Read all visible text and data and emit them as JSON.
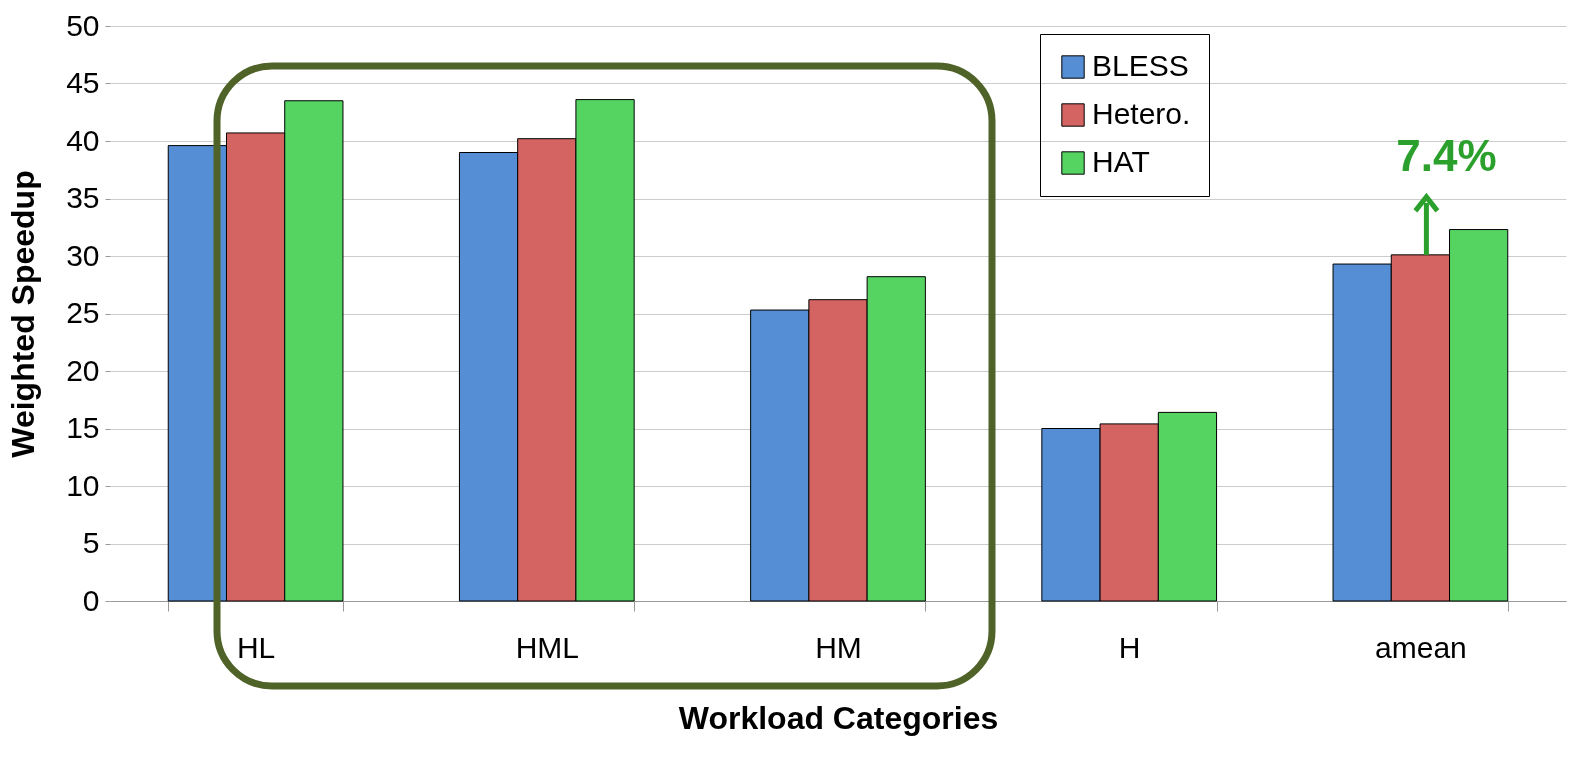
{
  "chart_data": {
    "type": "bar",
    "xlabel": "Workload Categories",
    "ylabel": "Weighted Speedup",
    "categories": [
      "HL",
      "HML",
      "HM",
      "H",
      "amean"
    ],
    "series": [
      {
        "name": "BLESS",
        "color": "#558ed5",
        "values": [
          39.6,
          39.0,
          25.3,
          15.0,
          29.3
        ]
      },
      {
        "name": "Hetero.",
        "color": "#d46461",
        "values": [
          40.7,
          40.2,
          26.2,
          15.4,
          30.1
        ]
      },
      {
        "name": "HAT",
        "color": "#55d462",
        "values": [
          43.5,
          43.6,
          28.2,
          16.4,
          32.3
        ]
      }
    ],
    "ylim": [
      0,
      50
    ],
    "yticks": [
      0,
      5,
      10,
      15,
      20,
      25,
      30,
      35,
      40,
      45,
      50
    ],
    "grid": "y",
    "legend": "top right",
    "annotations": [
      {
        "text": "7.4%",
        "x": "amean",
        "y": 30.1
      }
    ]
  }
}
